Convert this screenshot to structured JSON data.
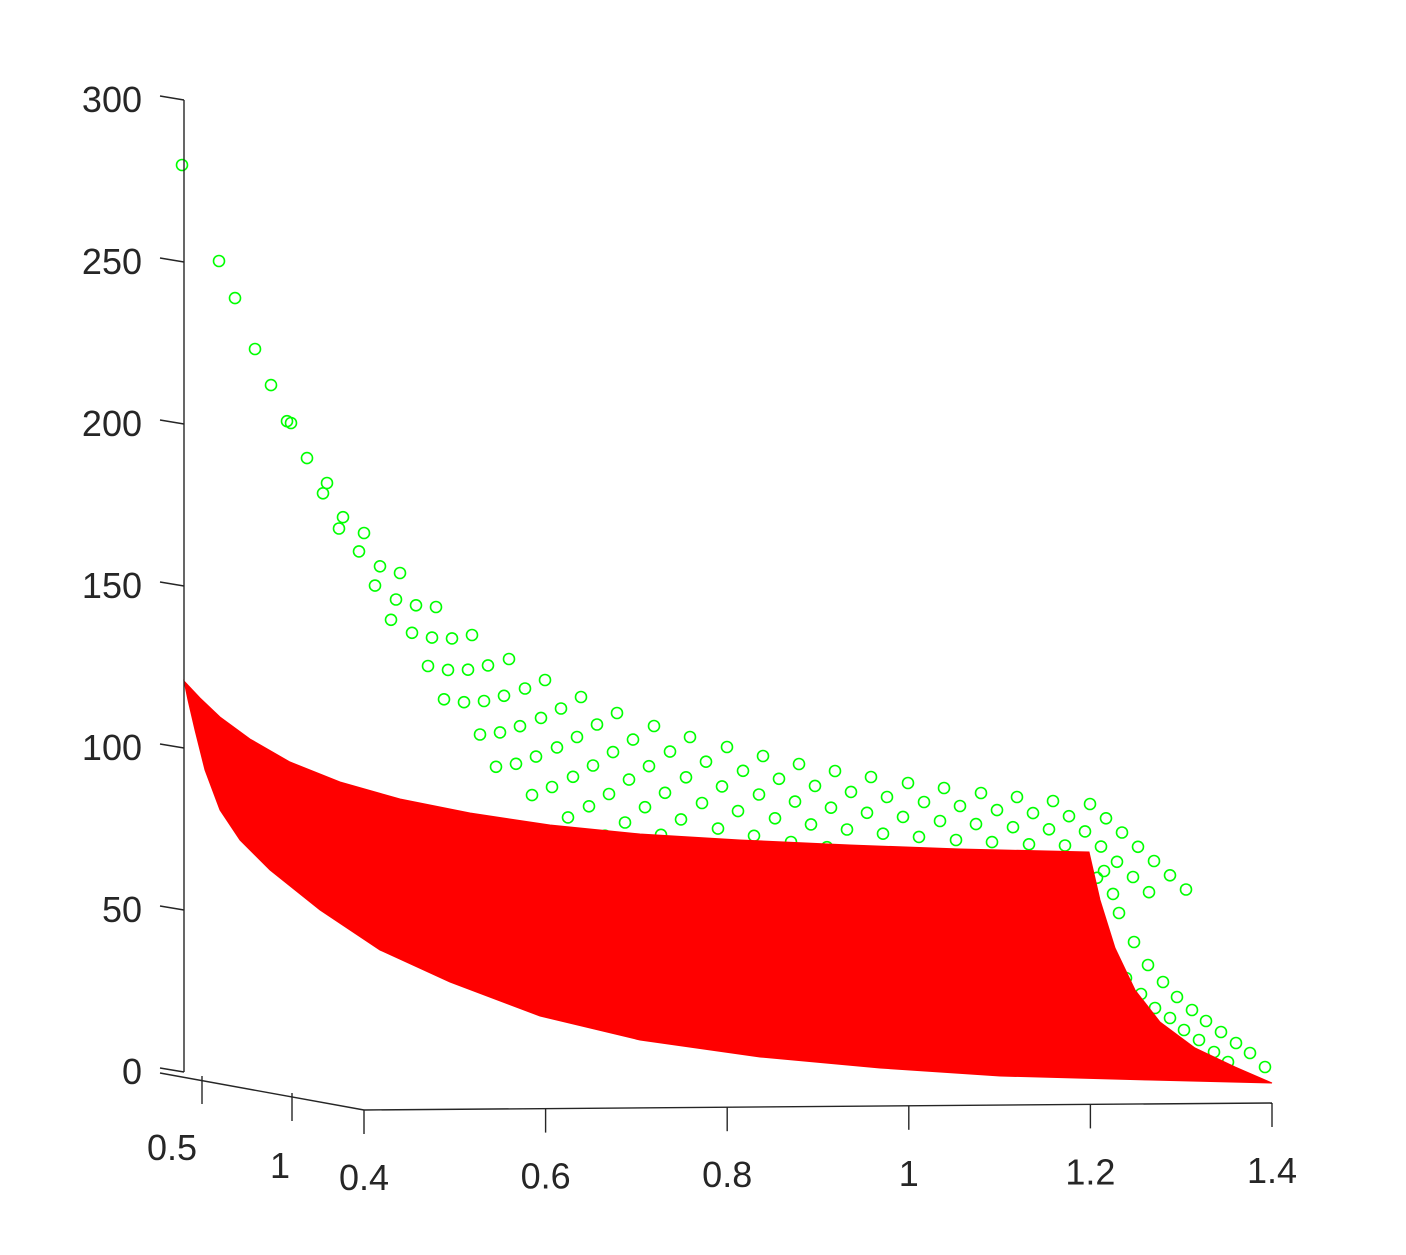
{
  "chart_data": {
    "type": "surface3d",
    "title": "",
    "xlabel": "",
    "ylabel": "",
    "zlabel": "",
    "grid": false,
    "colors": {
      "surface": "#ff0000",
      "markers": "#00ff00",
      "axis": "#262626"
    },
    "axes": {
      "z_ticks": [
        "300",
        "250",
        "200",
        "150",
        "100",
        "50",
        "0"
      ],
      "x_ticks": [
        "0.4",
        "0.6",
        "0.8",
        "1",
        "1.2",
        "1.4"
      ],
      "y_ticks": [
        "0.5",
        "1"
      ],
      "zlim": [
        0,
        300
      ],
      "xlim": [
        0.4,
        1.4
      ],
      "ylim": [
        0.4,
        1.2
      ]
    },
    "surface": {
      "name": "",
      "front_edge": {
        "x": [
          0.4,
          0.45,
          0.5,
          0.6,
          0.7,
          0.8,
          0.9,
          1.0,
          1.1,
          1.2
        ],
        "z": [
          121,
          98,
          88,
          78,
          74,
          72,
          70,
          69,
          68,
          67
        ]
      },
      "back_edge": {
        "x": [
          0.4,
          0.5,
          0.6,
          0.7,
          0.8,
          0.9,
          1.0,
          1.1,
          1.2,
          1.3,
          1.4
        ],
        "z": [
          121,
          50,
          32,
          20,
          13,
          9,
          6,
          4,
          3,
          2,
          0
        ]
      }
    },
    "scatter_rows": [
      {
        "z": [
          280,
          218,
          172,
          142,
          120,
          104
        ]
      },
      {
        "z": [
          250,
          202,
          161,
          131,
          110,
          95,
          86
        ]
      },
      {
        "z": [
          222,
          188,
          151,
          122,
          109,
          91,
          81
        ]
      },
      {
        "z": [
          200,
          172,
          143,
          114,
          103,
          91,
          79
        ]
      },
      {
        "z": [
          181,
          156,
          133,
          123,
          97,
          85,
          78
        ]
      },
      {
        "z": [
          166,
          142,
          121,
          104,
          90,
          80,
          72
        ]
      },
      {
        "z": [
          153,
          131,
          112,
          97,
          86,
          76,
          69
        ]
      },
      {
        "z": [
          143,
          121,
          105,
          93,
          82,
          73,
          66
        ]
      },
      {
        "z": [
          134,
          114,
          100,
          89,
          79,
          71,
          64
        ]
      },
      {
        "z": [
          127,
          111,
          100,
          91,
          82,
          76,
          68
        ]
      },
      {
        "z": [
          120,
          110,
          101,
          94,
          86,
          78,
          70
        ]
      },
      {
        "z": [
          115,
          106,
          99,
          93,
          88,
          83,
          76
        ]
      },
      {
        "z": [
          110,
          103,
          97,
          92,
          88,
          85,
          82
        ]
      },
      {
        "z": [
          62,
          49,
          40,
          33,
          28,
          24,
          20,
          17,
          14,
          11,
          9,
          7,
          5,
          3,
          1
        ]
      }
    ]
  }
}
